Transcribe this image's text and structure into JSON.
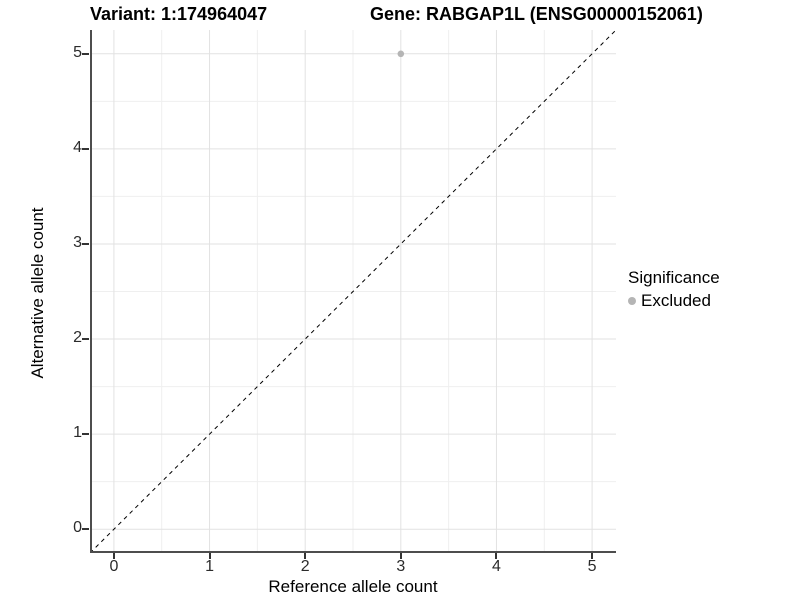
{
  "titles": {
    "variant": "Variant: 1:174964047",
    "gene": "Gene: RABGAP1L (ENSG00000152061)"
  },
  "axes": {
    "x": {
      "label": "Reference allele count",
      "ticks": [
        0,
        1,
        2,
        3,
        4,
        5
      ]
    },
    "y": {
      "label": "Alternative allele count",
      "ticks": [
        0,
        1,
        2,
        3,
        4,
        5
      ]
    }
  },
  "legend": {
    "title": "Significance",
    "items": [
      {
        "label": "Excluded",
        "color": "#b5b5b5"
      }
    ]
  },
  "colors": {
    "grid_major": "#e2e2e2",
    "grid_minor": "#efefef",
    "axis_line": "#4d4d4d",
    "tick_mark": "#333333",
    "identity_line": "#000000",
    "point": "#b5b5b5"
  },
  "chart_data": {
    "type": "scatter",
    "title_left": "Variant: 1:174964047",
    "title_right": "Gene: RABGAP1L (ENSG00000152061)",
    "xlabel": "Reference allele count",
    "ylabel": "Alternative allele count",
    "xlim": [
      -0.25,
      5.25
    ],
    "ylim": [
      -0.25,
      5.25
    ],
    "x_ticks": [
      0,
      1,
      2,
      3,
      4,
      5
    ],
    "y_ticks": [
      0,
      1,
      2,
      3,
      4,
      5
    ],
    "grid_major": [
      0,
      1,
      2,
      3,
      4,
      5
    ],
    "grid_minor": [
      0.5,
      1.5,
      2.5,
      3.5,
      4.5
    ],
    "identity_line": {
      "style": "dashed",
      "slope": 1,
      "intercept": 0
    },
    "legend_position": "right",
    "series": [
      {
        "name": "Excluded",
        "color": "#b5b5b5",
        "points": [
          {
            "x": 3,
            "y": 5
          }
        ]
      }
    ]
  }
}
